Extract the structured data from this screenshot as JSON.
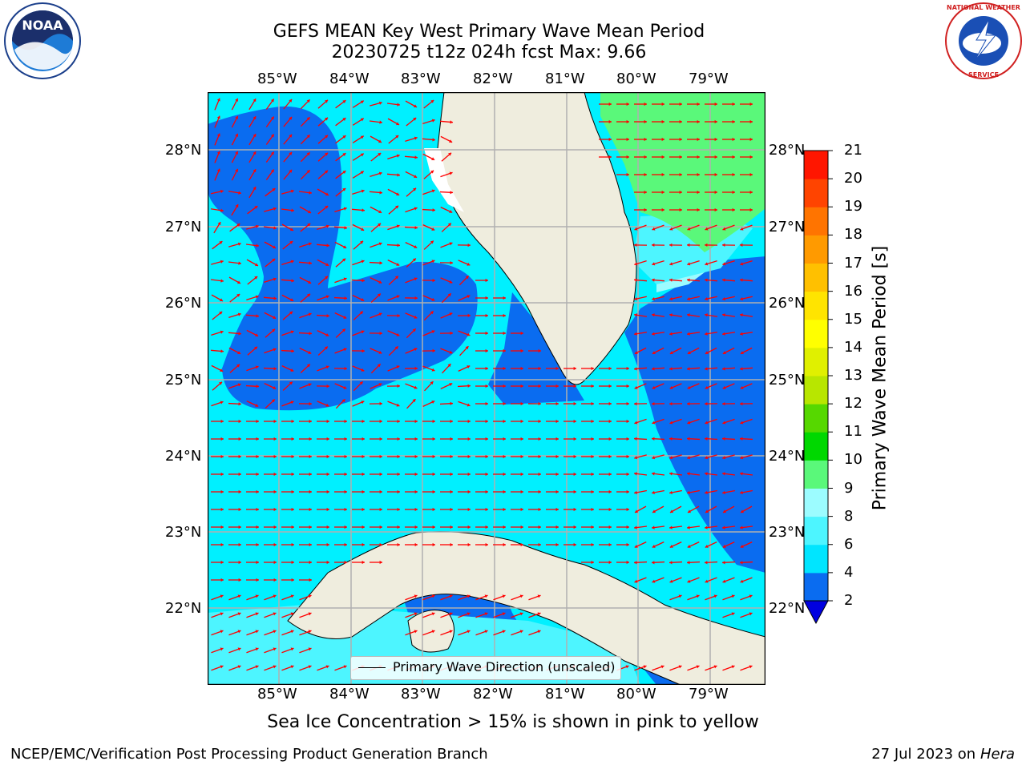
{
  "title_line1": "GEFS MEAN Key West Primary Wave Mean Period",
  "title_line2": "20230725 t12z 024h fcst   Max: 9.66",
  "lon_labels": [
    "85°W",
    "84°W",
    "83°W",
    "82°W",
    "81°W",
    "80°W",
    "79°W"
  ],
  "lat_labels": [
    "28°N",
    "27°N",
    "26°N",
    "25°N",
    "24°N",
    "23°N",
    "22°N"
  ],
  "legend_label": "Primary Wave Direction (unscaled)",
  "colorbar": {
    "title": "Primary Wave Mean Period [s]",
    "levels": [
      "2",
      "4",
      "6",
      "8",
      "9",
      "10",
      "11",
      "12",
      "13",
      "14",
      "15",
      "16",
      "17",
      "18",
      "19",
      "20",
      "21"
    ],
    "colors": [
      "#0a6cf0",
      "#00e5ff",
      "#4df5ff",
      "#9cfcff",
      "#5af87a",
      "#00d800",
      "#56d800",
      "#b8e600",
      "#e0f000",
      "#ffff00",
      "#ffe400",
      "#ffc000",
      "#ff9a00",
      "#ff7400",
      "#ff4400",
      "#ff1600"
    ],
    "extend_color": "#0000e0"
  },
  "caption": "Sea Ice Concentration > 15% is shown in pink to yellow",
  "footer_left": "NCEP/EMC/Verification Post Processing Product Generation Branch",
  "footer_right_prefix": "27 Jul 2023 on ",
  "footer_right_host": "Hera",
  "logos": {
    "left": {
      "icon": "noaa-logo-icon",
      "text": "NOAA"
    },
    "right": {
      "icon": "nws-logo-icon",
      "text": "NATIONAL WEATHER SERVICE"
    }
  },
  "colors": {
    "land": "#efedde",
    "ocean_mid": "#00f0ff",
    "ocean_low": "#0a6cf0",
    "ocean_high": "#5af87a",
    "arrow": "#ff0000"
  }
}
